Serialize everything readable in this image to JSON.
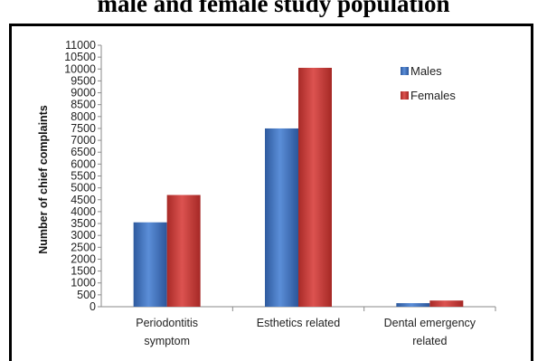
{
  "caption": "male and female study population",
  "chart_data": {
    "type": "bar",
    "categories": [
      [
        "Periodontitis",
        "symptom"
      ],
      [
        "Esthetics related"
      ],
      [
        "Dental emergency",
        "related"
      ]
    ],
    "series": [
      {
        "name": "Males",
        "values": [
          3550,
          7500,
          150
        ],
        "color": "#3f6fb9"
      },
      {
        "name": "Females",
        "values": [
          4700,
          10050,
          260
        ],
        "color": "#c13a36"
      }
    ],
    "ylabel": "Number of chief complaints",
    "xlabel": "",
    "ylim": [
      0,
      11000
    ],
    "ytick_step": 500,
    "grid": false,
    "legend_position": "top-right"
  }
}
